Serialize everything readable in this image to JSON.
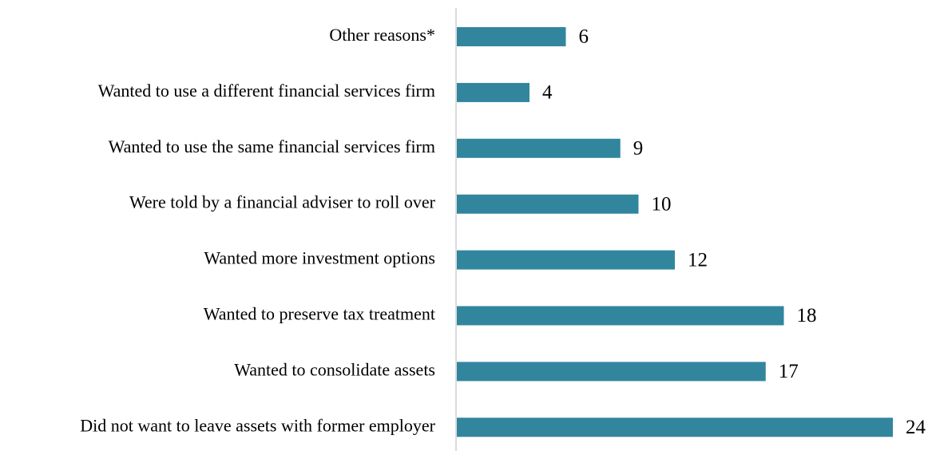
{
  "chart_data": {
    "type": "bar",
    "orientation": "horizontal",
    "categories": [
      "Other reasons*",
      "Wanted to use a different financial services firm",
      "Wanted to use the same financial services firm",
      "Were told by a financial adviser to roll over",
      "Wanted more investment options",
      "Wanted to preserve tax treatment",
      "Wanted to consolidate assets",
      "Did not want to leave assets with former employer"
    ],
    "values": [
      6,
      4,
      9,
      10,
      12,
      18,
      17,
      24
    ],
    "color": "#31869e"
  }
}
